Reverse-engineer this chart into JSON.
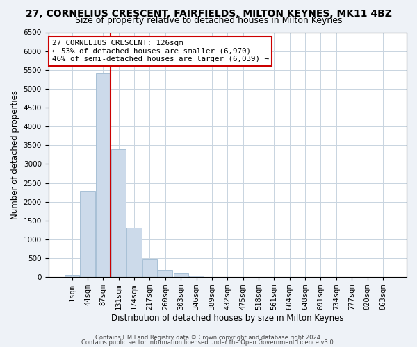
{
  "title": "27, CORNELIUS CRESCENT, FAIRFIELDS, MILTON KEYNES, MK11 4BZ",
  "subtitle": "Size of property relative to detached houses in Milton Keynes",
  "xlabel": "Distribution of detached houses by size in Milton Keynes",
  "ylabel": "Number of detached properties",
  "bar_labels": [
    "1sqm",
    "44sqm",
    "87sqm",
    "131sqm",
    "174sqm",
    "217sqm",
    "260sqm",
    "303sqm",
    "346sqm",
    "389sqm",
    "432sqm",
    "475sqm",
    "518sqm",
    "561sqm",
    "604sqm",
    "648sqm",
    "691sqm",
    "734sqm",
    "777sqm",
    "820sqm",
    "863sqm"
  ],
  "bar_values": [
    60,
    2280,
    5420,
    3390,
    1310,
    480,
    185,
    90,
    50,
    0,
    0,
    0,
    0,
    0,
    0,
    0,
    0,
    0,
    0,
    0,
    0
  ],
  "bar_color": "#ccdaea",
  "bar_edgecolor": "#a8c0d6",
  "ylim": [
    0,
    6500
  ],
  "yticks": [
    0,
    500,
    1000,
    1500,
    2000,
    2500,
    3000,
    3500,
    4000,
    4500,
    5000,
    5500,
    6000,
    6500
  ],
  "vline_x": 2.475,
  "vline_color": "#cc0000",
  "annotation_box_text": "27 CORNELIUS CRESCENT: 126sqm\n← 53% of detached houses are smaller (6,970)\n46% of semi-detached houses are larger (6,039) →",
  "footer1": "Contains HM Land Registry data © Crown copyright and database right 2024.",
  "footer2": "Contains public sector information licensed under the Open Government Licence v3.0.",
  "bg_color": "#eef2f7",
  "plot_bg_color": "#ffffff",
  "grid_color": "#c8d4e0",
  "title_fontsize": 10,
  "subtitle_fontsize": 9,
  "xlabel_fontsize": 8.5,
  "ylabel_fontsize": 8.5,
  "tick_fontsize": 7.5,
  "ann_fontsize": 7.8
}
